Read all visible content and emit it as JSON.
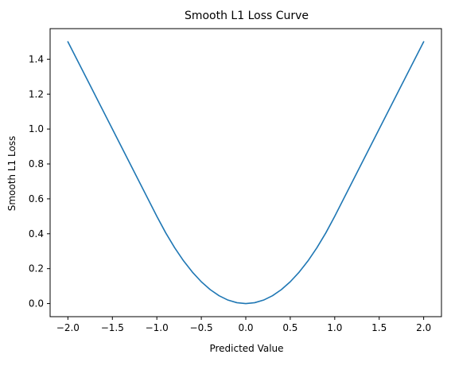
{
  "chart_data": {
    "type": "line",
    "title": "Smooth L1 Loss Curve",
    "xlabel": "Predicted Value",
    "ylabel": "Smooth L1 Loss",
    "xlim": [
      -2.2,
      2.2
    ],
    "ylim": [
      -0.075,
      1.575
    ],
    "xticks": [
      -2.0,
      -1.5,
      -1.0,
      -0.5,
      0.0,
      0.5,
      1.0,
      1.5,
      2.0
    ],
    "xtick_labels": [
      "−2.0",
      "−1.5",
      "−1.0",
      "−0.5",
      "0.0",
      "0.5",
      "1.0",
      "1.5",
      "2.0"
    ],
    "yticks": [
      0.0,
      0.2,
      0.4,
      0.6,
      0.8,
      1.0,
      1.2,
      1.4
    ],
    "ytick_labels": [
      "0.0",
      "0.2",
      "0.4",
      "0.6",
      "0.8",
      "1.0",
      "1.2",
      "1.4"
    ],
    "grid": false,
    "series": [
      {
        "color": "#1f77b4",
        "x": [
          -2.0,
          -1.75,
          -1.5,
          -1.25,
          -1.0,
          -0.9,
          -0.8,
          -0.7,
          -0.6,
          -0.5,
          -0.4,
          -0.3,
          -0.2,
          -0.1,
          0.0,
          0.1,
          0.2,
          0.3,
          0.4,
          0.5,
          0.6,
          0.7,
          0.8,
          0.9,
          1.0,
          1.25,
          1.5,
          1.75,
          2.0
        ],
        "y": [
          1.5,
          1.25,
          1.0,
          0.75,
          0.5,
          0.405,
          0.32,
          0.245,
          0.18,
          0.125,
          0.08,
          0.045,
          0.02,
          0.005,
          0.0,
          0.005,
          0.02,
          0.045,
          0.08,
          0.125,
          0.18,
          0.245,
          0.32,
          0.405,
          0.5,
          0.75,
          1.0,
          1.25,
          1.5
        ]
      }
    ]
  }
}
